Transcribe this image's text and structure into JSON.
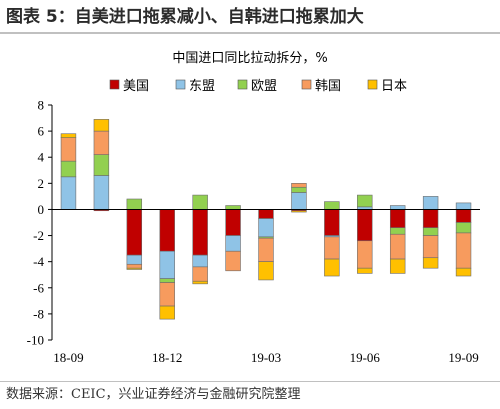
{
  "figure_title": "图表 5：自美进口拖累减小、自韩进口拖累加大",
  "source_note": "数据来源：CEIC，兴业证券经济与金融研究院整理",
  "chart_data": {
    "type": "bar",
    "stacked": true,
    "title": "中国进口同比拉动拆分，%",
    "xlabel": "",
    "ylabel": "",
    "ylim": [
      -10,
      8
    ],
    "yticks": [
      8,
      6,
      4,
      2,
      0,
      -2,
      -4,
      -6,
      -8,
      -10
    ],
    "grid": false,
    "legend_position": "top",
    "categories": [
      "18-09",
      "18-10",
      "18-11",
      "18-12",
      "19-01",
      "19-02",
      "19-03",
      "19-04",
      "19-05",
      "19-06",
      "19-07",
      "19-08",
      "19-09"
    ],
    "x_tick_labels": [
      {
        "index": 0,
        "label": "18-09"
      },
      {
        "index": 3,
        "label": "18-12"
      },
      {
        "index": 6,
        "label": "19-03"
      },
      {
        "index": 9,
        "label": "19-06"
      },
      {
        "index": 12,
        "label": "19-09"
      }
    ],
    "series": [
      {
        "name": "美国",
        "color": "#c00000",
        "values": [
          0,
          -0.1,
          -3.5,
          -3.2,
          -3.5,
          -2.0,
          -0.7,
          -0.1,
          -2.0,
          -2.4,
          -1.4,
          -1.4,
          -1.0
        ]
      },
      {
        "name": "东盟",
        "color": "#8fc3e6",
        "values": [
          2.5,
          2.6,
          -0.7,
          -2.1,
          -0.9,
          -1.2,
          -1.4,
          1.3,
          -0.1,
          0.2,
          0.3,
          1.0,
          0.5
        ]
      },
      {
        "name": "欧盟",
        "color": "#92d050",
        "values": [
          1.2,
          1.6,
          0.8,
          -0.3,
          1.1,
          0.3,
          -0.1,
          0.4,
          0.6,
          0.9,
          -0.5,
          -0.6,
          -0.8
        ]
      },
      {
        "name": "韩国",
        "color": "#f79b5e",
        "values": [
          1.8,
          1.8,
          -0.3,
          -1.8,
          -1.1,
          -1.5,
          -1.8,
          0.3,
          -1.7,
          -2.1,
          -1.9,
          -1.7,
          -2.7
        ]
      },
      {
        "name": "日本",
        "color": "#ffc000",
        "values": [
          0.3,
          0.9,
          -0.1,
          -1.0,
          -0.2,
          0,
          -1.4,
          -0.1,
          -1.3,
          -0.4,
          -1.1,
          -0.8,
          -0.6
        ]
      }
    ]
  }
}
